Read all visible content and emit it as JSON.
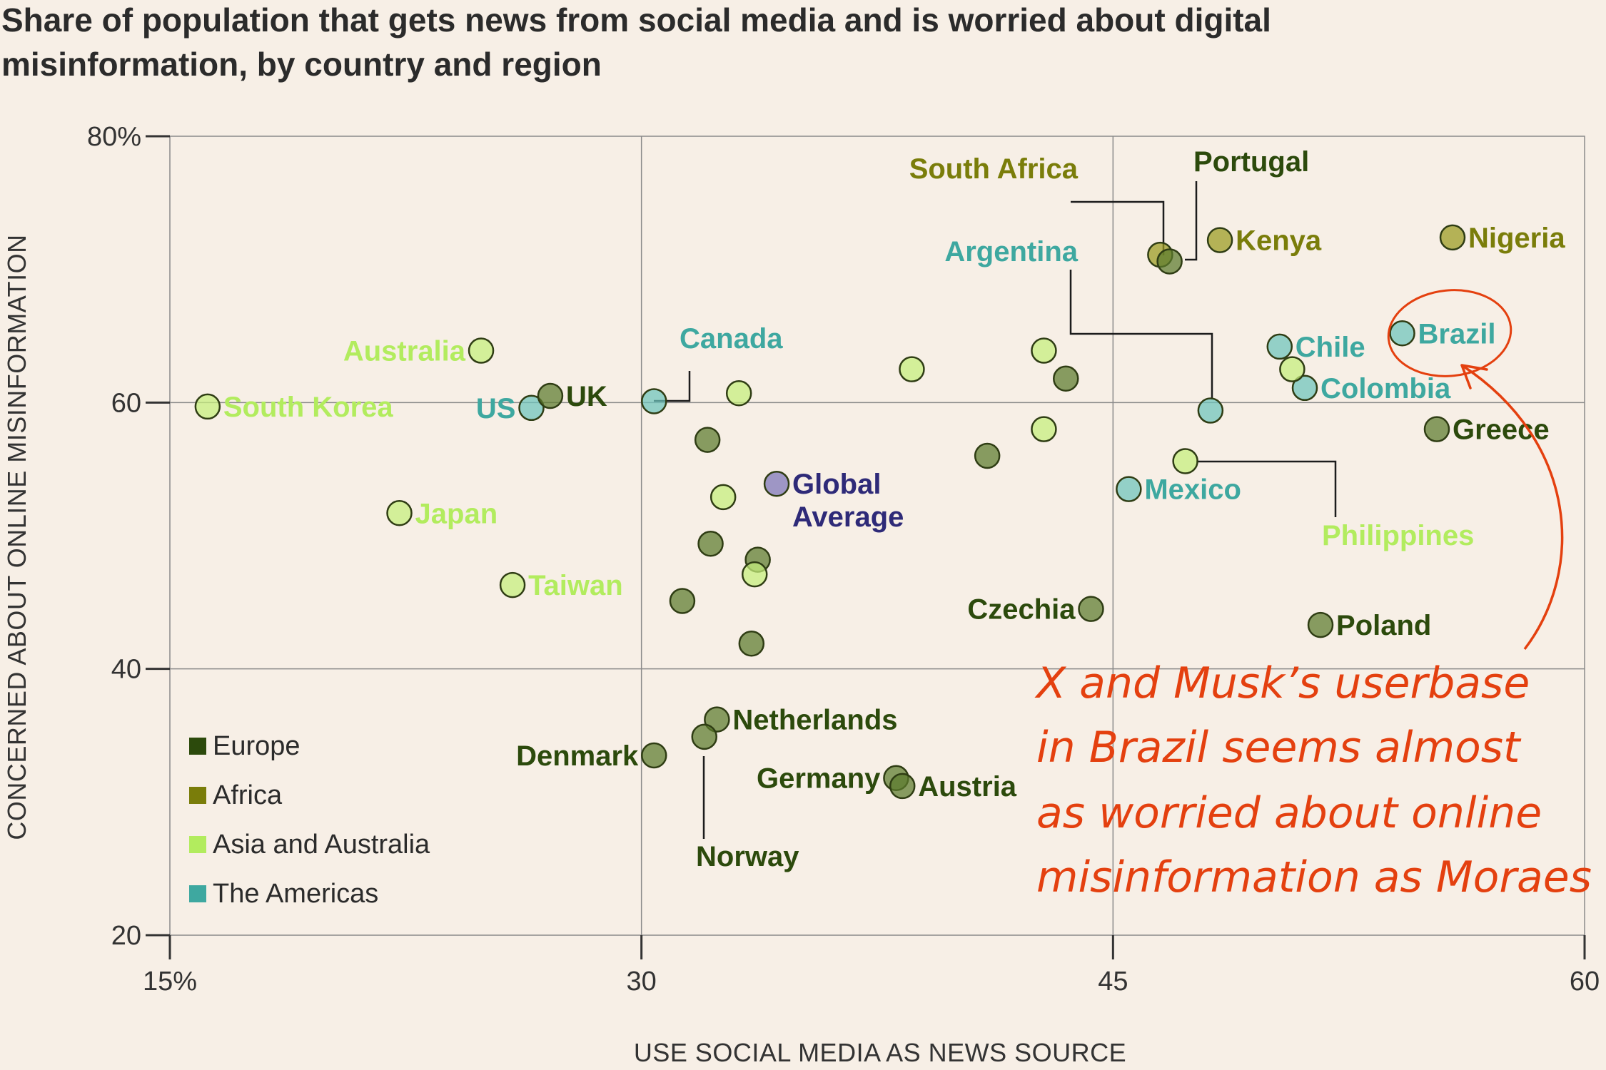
{
  "chart_data": {
    "type": "scatter",
    "title": "Share of population that gets news from social media and is worried about digital misinformation, by country and region",
    "title_lines": [
      "Share of population that gets news from social media and is worried about digital",
      "misinformation, by country and region"
    ],
    "xlabel": "USE SOCIAL MEDIA AS NEWS SOURCE",
    "ylabel": "CONCERNED ABOUT ONLINE MISINFORMATION",
    "xlim": [
      15,
      60
    ],
    "ylim": [
      20,
      80
    ],
    "x_ticks": [
      {
        "value": 15,
        "label": "15%"
      },
      {
        "value": 30,
        "label": "30"
      },
      {
        "value": 45,
        "label": "45"
      },
      {
        "value": 60,
        "label": "60"
      }
    ],
    "y_ticks": [
      {
        "value": 80,
        "label": "80%"
      },
      {
        "value": 60,
        "label": "60"
      },
      {
        "value": 40,
        "label": "40"
      },
      {
        "value": 20,
        "label": "20"
      }
    ],
    "gridlines": {
      "x": [
        30,
        45
      ],
      "y": [
        60,
        40
      ]
    },
    "region_colors": {
      "Europe": "#5c7a2c",
      "Africa": "#9a9a1e",
      "Asia and Australia": "#c5ef7c",
      "The Americas": "#6cc4bb",
      "Global": "#7b73b8"
    },
    "label_colors": {
      "Europe": "#2c4a0c",
      "Africa": "#7a7d0a",
      "Asia and Australia": "#b2ec5e",
      "The Americas": "#3ea8a0",
      "Global": "#2e2a78"
    },
    "legend": [
      {
        "label": "Europe",
        "color": "#2c4a0c"
      },
      {
        "label": "Africa",
        "color": "#7a7d0a"
      },
      {
        "label": "Asia and Australia",
        "color": "#b2ec5e"
      },
      {
        "label": "The Americas",
        "color": "#3ea8a0"
      }
    ],
    "points": [
      {
        "name": "South Korea",
        "region": "Asia and Australia",
        "x": 16.2,
        "y": 59.7
      },
      {
        "name": "Australia",
        "region": "Asia and Australia",
        "x": 24.9,
        "y": 63.9
      },
      {
        "name": "Japan",
        "region": "Asia and Australia",
        "x": 22.3,
        "y": 51.7
      },
      {
        "name": "Taiwan",
        "region": "Asia and Australia",
        "x": 25.9,
        "y": 46.3
      },
      {
        "name": "US",
        "region": "The Americas",
        "x": 26.5,
        "y": 59.6
      },
      {
        "name": "UK",
        "region": "Europe",
        "x": 27.1,
        "y": 60.5
      },
      {
        "name": "Canada",
        "region": "The Americas",
        "x": 30.4,
        "y": 60.1
      },
      {
        "name": "Denmark",
        "region": "Europe",
        "x": 30.4,
        "y": 33.5
      },
      {
        "name": "Netherlands",
        "region": "Europe",
        "x": 32.4,
        "y": 36.2
      },
      {
        "name": "Norway",
        "region": "Europe",
        "x": 32.0,
        "y": 34.9
      },
      {
        "name": "Germany",
        "region": "Europe",
        "x": 38.1,
        "y": 31.8
      },
      {
        "name": "Austria",
        "region": "Europe",
        "x": 38.3,
        "y": 31.2
      },
      {
        "name": "Global Average",
        "region": "Global",
        "x": 34.3,
        "y": 53.9
      },
      {
        "name": "Czechia",
        "region": "Europe",
        "x": 44.3,
        "y": 44.5
      },
      {
        "name": "South Africa",
        "region": "Africa",
        "x": 46.5,
        "y": 71.1
      },
      {
        "name": "Portugal",
        "region": "Europe",
        "x": 46.8,
        "y": 70.6
      },
      {
        "name": "Kenya",
        "region": "Africa",
        "x": 48.4,
        "y": 72.2
      },
      {
        "name": "Nigeria",
        "region": "Africa",
        "x": 55.8,
        "y": 72.4
      },
      {
        "name": "Argentina",
        "region": "The Americas",
        "x": 48.1,
        "y": 59.4
      },
      {
        "name": "Chile",
        "region": "The Americas",
        "x": 50.3,
        "y": 64.2
      },
      {
        "name": "Colombia",
        "region": "The Americas",
        "x": 51.1,
        "y": 61.1
      },
      {
        "name": "Brazil",
        "region": "The Americas",
        "x": 54.2,
        "y": 65.2
      },
      {
        "name": "Mexico",
        "region": "The Americas",
        "x": 45.5,
        "y": 53.5
      },
      {
        "name": "Philippines",
        "region": "Asia and Australia",
        "x": 47.3,
        "y": 55.6
      },
      {
        "name": "Greece",
        "region": "Europe",
        "x": 55.3,
        "y": 58.0
      },
      {
        "name": "Poland",
        "region": "Europe",
        "x": 51.6,
        "y": 43.3
      },
      {
        "name": "",
        "region": "Europe",
        "x": 32.1,
        "y": 57.2
      },
      {
        "name": "",
        "region": "Asia and Australia",
        "x": 33.1,
        "y": 60.7
      },
      {
        "name": "",
        "region": "Asia and Australia",
        "x": 32.6,
        "y": 52.9
      },
      {
        "name": "",
        "region": "Europe",
        "x": 32.2,
        "y": 49.4
      },
      {
        "name": "",
        "region": "Europe",
        "x": 33.7,
        "y": 48.2
      },
      {
        "name": "",
        "region": "Asia and Australia",
        "x": 33.6,
        "y": 47.1
      },
      {
        "name": "",
        "region": "Europe",
        "x": 31.3,
        "y": 45.1
      },
      {
        "name": "",
        "region": "Europe",
        "x": 33.5,
        "y": 41.9
      },
      {
        "name": "",
        "region": "Asia and Australia",
        "x": 38.6,
        "y": 62.5
      },
      {
        "name": "",
        "region": "Europe",
        "x": 41.0,
        "y": 56.0
      },
      {
        "name": "",
        "region": "Asia and Australia",
        "x": 42.8,
        "y": 63.9
      },
      {
        "name": "",
        "region": "Europe",
        "x": 43.5,
        "y": 61.8
      },
      {
        "name": "",
        "region": "Asia and Australia",
        "x": 42.8,
        "y": 58.0
      },
      {
        "name": "",
        "region": "Asia and Australia",
        "x": 50.7,
        "y": 62.5
      }
    ],
    "annotation": {
      "lines": [
        "X and Musk’s userbase",
        " in Brazil seems almost",
        "as worried about online",
        "misinformation as Moraes"
      ],
      "color": "#e4400f",
      "target": "Brazil"
    }
  }
}
